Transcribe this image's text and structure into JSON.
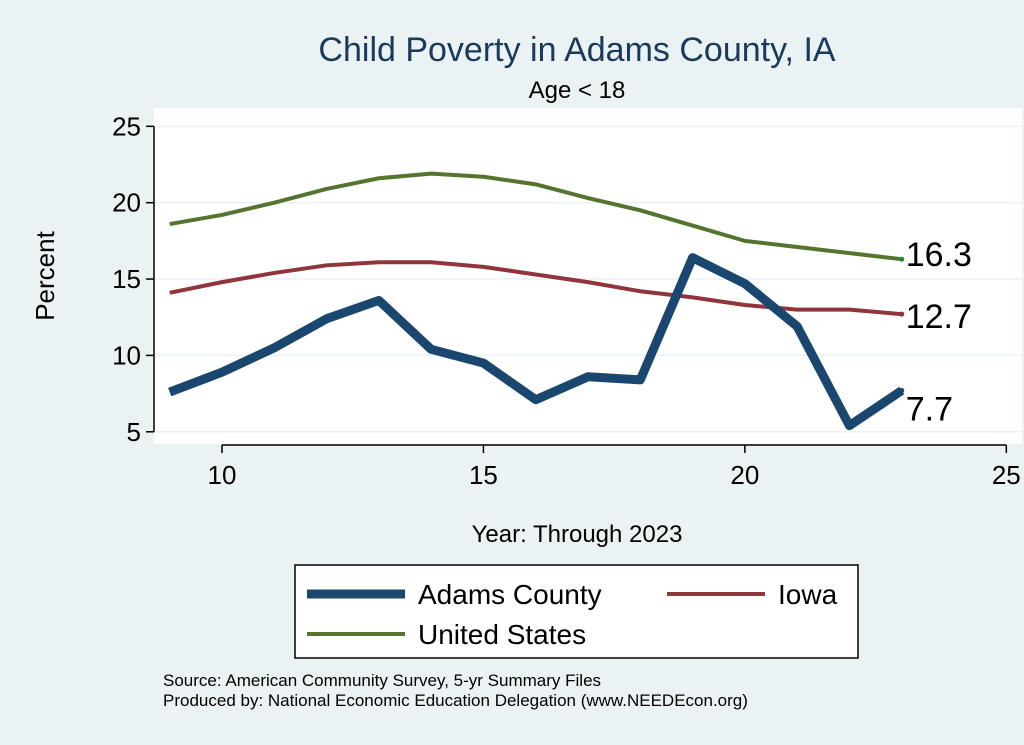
{
  "chart_data": {
    "type": "line",
    "title": "Child Poverty in Adams County, IA",
    "subtitle": "Age < 18",
    "xlabel": "Year: Through 2023",
    "ylabel": "Percent",
    "xlim": [
      8.7,
      25.3
    ],
    "ylim": [
      4.2,
      26.2
    ],
    "x_ticks": [
      10,
      15,
      20,
      25
    ],
    "y_ticks": [
      5,
      10,
      15,
      20,
      25
    ],
    "x": [
      9,
      10,
      11,
      12,
      13,
      14,
      15,
      16,
      17,
      18,
      19,
      20,
      21,
      22,
      23
    ],
    "series": [
      {
        "name": "Adams County",
        "color": "#1a476f",
        "end_label": "7.7",
        "values": [
          7.6,
          8.9,
          10.5,
          12.4,
          13.6,
          10.4,
          9.5,
          7.1,
          8.6,
          8.4,
          16.4,
          14.7,
          11.9,
          5.4,
          7.7
        ]
      },
      {
        "name": "Iowa",
        "color": "#90353b",
        "end_label": "12.7",
        "values": [
          14.1,
          14.8,
          15.4,
          15.9,
          16.1,
          16.1,
          15.8,
          15.3,
          14.8,
          14.2,
          13.8,
          13.3,
          13.0,
          13.0,
          12.7
        ]
      },
      {
        "name": "United States",
        "color": "#55752f",
        "end_label": "16.3",
        "values": [
          18.6,
          19.2,
          20.0,
          20.9,
          21.6,
          21.9,
          21.7,
          21.2,
          20.3,
          19.5,
          18.5,
          17.5,
          17.1,
          16.7,
          16.3
        ]
      }
    ],
    "legend": {
      "placement": "bottom",
      "entries": [
        "Adams County",
        "Iowa",
        "United States"
      ]
    },
    "grid": true
  },
  "footer": {
    "source": "Source: American Community Survey, 5-yr Summary Files",
    "produced_by": "Produced by: National Economic Education Delegation (www.NEEDEcon.org)"
  },
  "colors": {
    "background": "#eaf2f3",
    "plot_background": "#ffffff",
    "gridline": "#eaf2f3",
    "title": "#1a3a5c",
    "end_dot": "#2a8a2a"
  }
}
